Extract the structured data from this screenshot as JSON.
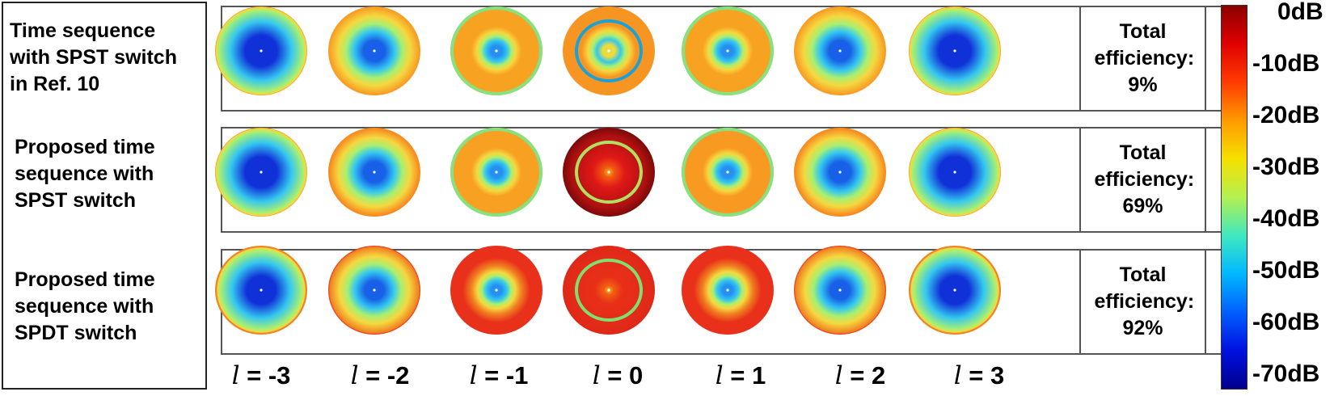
{
  "rows": [
    {
      "label_lines": [
        "Time sequence",
        "with SPST switch",
        "in Ref. 10"
      ],
      "efficiency_label": "Total efficiency:",
      "efficiency_value": "9%",
      "outer_colors": [
        "#f7a020",
        "#f89a22",
        "#f8a222",
        "#f79522",
        "#f8a222",
        "#f89a22",
        "#f7a020"
      ],
      "rim_colors": [
        null,
        null,
        "#86e280",
        null,
        "#86e280",
        null,
        null
      ],
      "ring_colors": [
        null,
        null,
        null,
        "#1aa2d8",
        null,
        null,
        null
      ],
      "center_colors": [
        "#1030d8",
        "#1860e8",
        "#2590f0",
        "#e8dc40",
        "#2590f0",
        "#1860e8",
        "#1030d8"
      ],
      "center_sizes": [
        36,
        24,
        13,
        14,
        13,
        24,
        36
      ]
    },
    {
      "label_lines": [
        "Proposed time",
        "sequence with",
        "SPST switch"
      ],
      "efficiency_label": "Total efficiency:",
      "efficiency_value": "69%",
      "outer_colors": [
        "#f7a020",
        "#f7861e",
        "#f8a022",
        "#b51b14",
        "#f89a22",
        "#f7861e",
        "#f7a020"
      ],
      "rim_colors": [
        null,
        null,
        "#86e280",
        null,
        "#86e280",
        null,
        null
      ],
      "ring_colors": [
        null,
        null,
        null,
        "#b0e060",
        null,
        null,
        null
      ],
      "center_colors": [
        "#1030d8",
        "#1860e8",
        "#2590f0",
        "#f8c020",
        "#2590f0",
        "#1860e8",
        "#1030d8"
      ],
      "center_sizes": [
        36,
        24,
        13,
        16,
        13,
        24,
        36
      ]
    },
    {
      "label_lines": [
        "Proposed time",
        "sequence with",
        "SPDT switch"
      ],
      "efficiency_label": "Total efficiency:",
      "efficiency_value": "92%",
      "outer_colors": [
        "#f08428",
        "#ec3a1c",
        "#e8301a",
        "#e5281a",
        "#e8301a",
        "#ec3a1c",
        "#f08428"
      ],
      "rim_colors": [
        null,
        null,
        null,
        null,
        null,
        null,
        null
      ],
      "ring_colors": [
        null,
        null,
        null,
        "#7ee070",
        null,
        null,
        null
      ],
      "center_colors": [
        "#1030d8",
        "#1860e8",
        "#2590f0",
        "#f8c020",
        "#2590f0",
        "#1860e8",
        "#1030d8"
      ],
      "center_sizes": [
        36,
        24,
        13,
        16,
        13,
        24,
        36
      ]
    }
  ],
  "l_labels": [
    {
      "symbol": "l",
      "value": " = -3"
    },
    {
      "symbol": "l",
      "value": " = -2"
    },
    {
      "symbol": "l",
      "value": " = -1"
    },
    {
      "symbol": "l",
      "value": " = 0"
    },
    {
      "symbol": "l",
      "value": " = 1"
    },
    {
      "symbol": "l",
      "value": " = 2"
    },
    {
      "symbol": "l",
      "value": " = 3"
    }
  ],
  "colorbar": {
    "ticks": [
      "0dB",
      "-10dB",
      "-20dB",
      "-30dB",
      "-40dB",
      "-50dB",
      "-60dB",
      "-70dB"
    ],
    "tick_values": [
      0,
      -10,
      -20,
      -30,
      -40,
      -50,
      -60,
      -70
    ],
    "colormap": [
      "#8b0000",
      "#e00000",
      "#ff3c00",
      "#ff9a00",
      "#f5e000",
      "#b4f050",
      "#40e8c0",
      "#00b8ff",
      "#0060ff",
      "#0010e0",
      "#00008c"
    ]
  }
}
